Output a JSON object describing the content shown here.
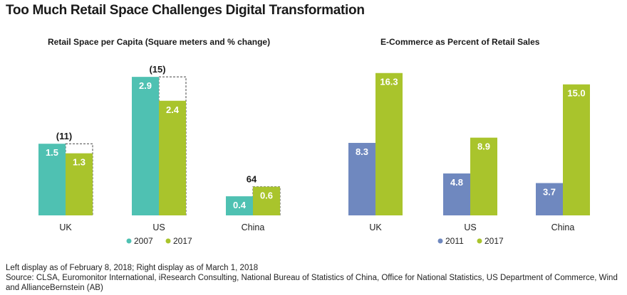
{
  "title": "Too Much Retail Space Challenges Digital Transformation",
  "colors": {
    "left_2007": "#4fc1b2",
    "left_2017": "#a9c42c",
    "right_2011": "#6f88bf",
    "right_2017": "#a9c42c",
    "dashed_outline": "#444444",
    "label_text": "#ffffff",
    "axis": "#cccccc"
  },
  "chart_data": [
    {
      "type": "bar",
      "title": "Retail Space per Capita (Square meters and % change)",
      "categories": [
        "UK",
        "US",
        "China"
      ],
      "series": [
        {
          "name": "2007",
          "values": [
            1.5,
            2.9,
            0.4
          ],
          "labels": [
            "1.5",
            "2.9",
            "0.4"
          ]
        },
        {
          "name": "2017",
          "values": [
            1.3,
            2.4,
            0.6
          ],
          "labels": [
            "1.3",
            "2.4",
            "0.6"
          ]
        }
      ],
      "pct_change_labels": [
        "(11)",
        "(15)",
        "64"
      ],
      "xlabel": "",
      "ylabel": "",
      "ylim": [
        0,
        3.2
      ],
      "grid": false,
      "legend": "bottom"
    },
    {
      "type": "bar",
      "title": "E-Commerce as Percent of Retail Sales",
      "categories": [
        "UK",
        "US",
        "China"
      ],
      "series": [
        {
          "name": "2011",
          "values": [
            8.3,
            4.8,
            3.7
          ],
          "labels": [
            "8.3",
            "4.8",
            "3.7"
          ]
        },
        {
          "name": "2017",
          "values": [
            16.3,
            8.9,
            15.0
          ],
          "labels": [
            "16.3",
            "8.9",
            "15.0"
          ]
        }
      ],
      "xlabel": "",
      "ylabel": "",
      "ylim": [
        0,
        17.5
      ],
      "grid": false,
      "legend": "bottom"
    }
  ],
  "notes": {
    "display": "Left display as of February 8, 2018; Right display as of March 1, 2018",
    "source": "Source: CLSA, Euromonitor International, iResearch Consulting, National Bureau of Statistics of China, Office for National Statistics, US Department of Commerce, Wind and AllianceBernstein (AB)"
  }
}
